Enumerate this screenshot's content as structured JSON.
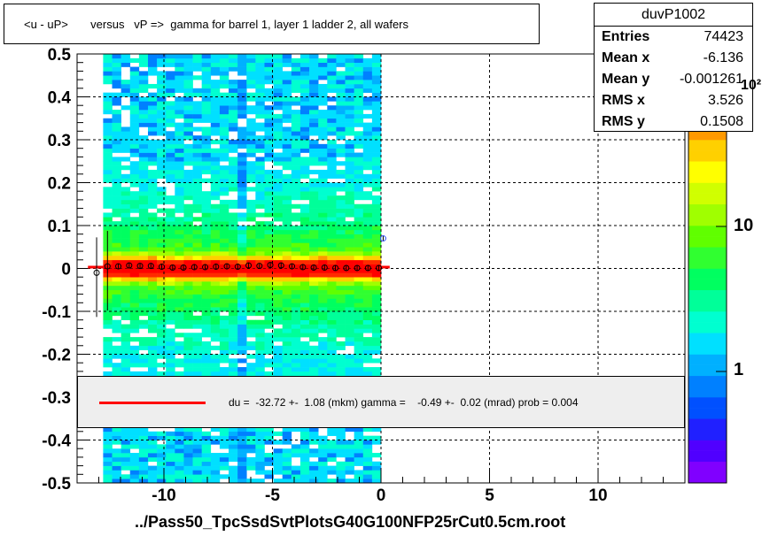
{
  "title": "<u - uP>       versus   vP =>  gamma for barrel 1, layer 1 ladder 2, all wafers",
  "stats": {
    "name": "duvP1002",
    "rows": [
      {
        "label": "Entries",
        "value": "74423"
      },
      {
        "label": "Mean x",
        "value": "-6.136"
      },
      {
        "label": "Mean y",
        "value": "-0.001261"
      },
      {
        "label": "RMS x",
        "value": "3.526"
      },
      {
        "label": "RMS y",
        "value": "0.1508"
      }
    ]
  },
  "fit_legend": "du =  -32.72 +-  1.08 (mkm) gamma =    -0.49 +-  0.02 (mrad) prob = 0.004",
  "xtitle": "../Pass50_TpcSsdSvtPlotsG40G100NFP25rCut0.5cm.root",
  "colors": {
    "fit_line": "#ff0000",
    "legend_bg": "#eeeeee",
    "profile_marker": "#000000"
  },
  "chart_data": {
    "type": "heatmap",
    "x_range": [
      -14,
      14
    ],
    "y_range": [
      -0.5,
      0.5
    ],
    "x_ticks": [
      -10,
      -5,
      0,
      5,
      10
    ],
    "x_tick_labels": [
      "-10",
      "-5",
      "0",
      "5",
      "10"
    ],
    "y_ticks": [
      -0.5,
      -0.4,
      -0.3,
      -0.2,
      -0.1,
      0,
      0.1,
      0.2,
      0.3,
      0.4,
      0.5
    ],
    "y_tick_labels": [
      "-0.5",
      "-0.4",
      "-0.3",
      "-0.2",
      "-0.1",
      "0",
      "0.1",
      "0.2",
      "0.3",
      "0.4",
      "0.5"
    ],
    "grid": true,
    "data_x_range": [
      -12.8,
      0
    ],
    "z_scale": "log",
    "z_tick_labels": [
      {
        "label": "1",
        "value": 1
      },
      {
        "label": "10",
        "value": 10
      },
      {
        "label": "10²",
        "value": 100
      }
    ],
    "profile": {
      "x": [
        -13.1,
        -12.6,
        -12.1,
        -11.6,
        -11.1,
        -10.6,
        -10.1,
        -9.6,
        -9.1,
        -8.6,
        -8.1,
        -7.6,
        -7.1,
        -6.6,
        -6.1,
        -5.6,
        -5.1,
        -4.6,
        -4.1,
        -3.6,
        -3.1,
        -2.6,
        -2.1,
        -1.6,
        -1.1,
        -0.6,
        -0.1,
        0.1
      ],
      "y": [
        -0.01,
        0.005,
        0.005,
        0.007,
        0.006,
        0.006,
        0.004,
        0.002,
        0.002,
        0.003,
        0.003,
        0.004,
        0.005,
        0.004,
        0.007,
        0.006,
        0.008,
        0.007,
        0.005,
        0.003,
        0.002,
        0.002,
        0.001,
        0.001,
        0.001,
        0.001,
        0.001,
        0.07
      ]
    },
    "fit_line": {
      "x": [
        -13.5,
        0.4
      ],
      "y": [
        0.003,
        0.003
      ]
    }
  }
}
